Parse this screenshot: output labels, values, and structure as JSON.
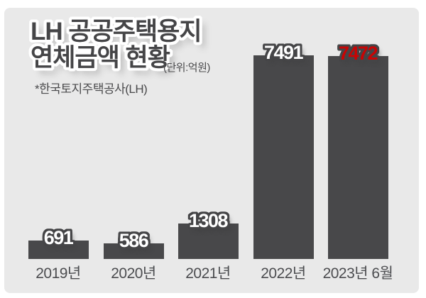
{
  "header": {
    "title_line1": "LH 공공주택용지",
    "title_line2": "연체금액 현황",
    "unit_note": "(단위:억원)",
    "source_note": "*한국토지주택공사(LH)"
  },
  "colors": {
    "page_bg": "#ffffff",
    "panel_bg": "#e9e9e9",
    "bar": "#48484a",
    "outline": "#454547",
    "title_text": "#454547",
    "value_label": "#ffffff",
    "highlight_value": "#c90404",
    "axis_label": "#4c4d50"
  },
  "chart_data": {
    "type": "bar",
    "title": "LH 공공주택용지 연체금액 현황",
    "unit": "억원",
    "categories": [
      "2019년",
      "2020년",
      "2021년",
      "2022년",
      "2023년 6월"
    ],
    "values": [
      691,
      586,
      1308,
      7491,
      7472
    ],
    "value_labels": [
      "691",
      "586",
      "1308",
      "7491",
      "7472"
    ],
    "highlight_index": 4,
    "ylim": [
      0,
      7500
    ],
    "grid": false,
    "legend": false,
    "source": "한국토지주택공사(LH)"
  }
}
